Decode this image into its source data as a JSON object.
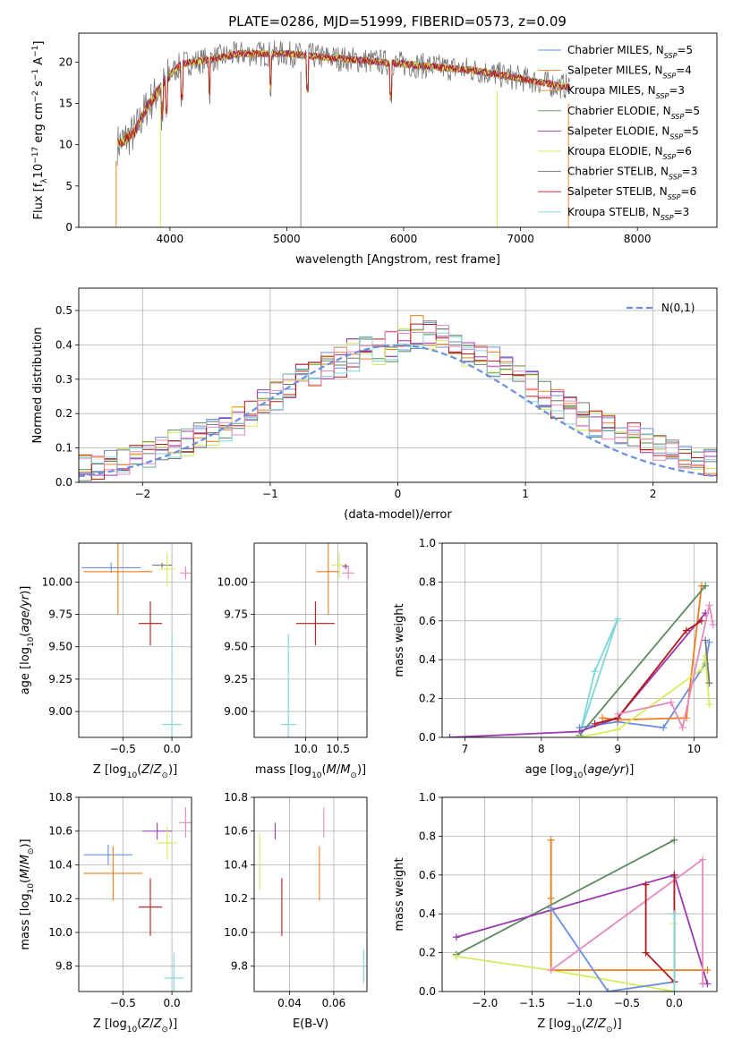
{
  "figure": {
    "title": "PLATE=0286, MJD=51999, FIBERID=0573, z=0.09"
  },
  "colors": {
    "chabrier_miles": "#6b8fde",
    "salpeter_miles": "#f07c1c",
    "kroupa_miles": "#d28a2a",
    "chabrier_elodie": "#5a8a5e",
    "salpeter_elodie": "#9b37b0",
    "kroupa_elodie": "#d6eb5b",
    "chabrier_stelib": "#777777",
    "salpeter_stelib": "#b31b1b",
    "kroupa_stelib": "#7fd6d6",
    "pink": "#e58ac0",
    "normal": "#6b8fde",
    "grid": "#b0b0b0"
  },
  "chart_data": [
    {
      "id": "spectrum",
      "type": "line",
      "title": "PLATE=0286, MJD=51999, FIBERID=0573, z=0.09",
      "xlabel": "wavelength [Angstrom, rest frame]",
      "ylabel": "Flux [f_λ 10^-17 erg cm^-2 s^-1 A^-1]",
      "xlim": [
        3220,
        8680
      ],
      "ylim": [
        0,
        23.5
      ],
      "xticks": [
        4000,
        5000,
        6000,
        7000,
        8000
      ],
      "yticks": [
        0,
        5,
        10,
        15,
        20
      ],
      "continuum": {
        "x": [
          3550,
          3700,
          3800,
          3900,
          4000,
          4100,
          4300,
          4600,
          5000,
          5400,
          5800,
          6200,
          6600,
          7000,
          7300,
          7420
        ],
        "y": [
          10.0,
          11.5,
          14.5,
          16.5,
          18.5,
          19.8,
          20.2,
          21.0,
          21.0,
          20.5,
          20.0,
          19.5,
          19.0,
          18.0,
          17.2,
          17.0
        ]
      },
      "legend_position": "right",
      "legend": [
        {
          "base": "Chabrier MILES, N",
          "sub": "SSP",
          "tail": "=5"
        },
        {
          "base": "Salpeter MILES, N",
          "sub": "SSP",
          "tail": "=4"
        },
        {
          "base": "Kroupa MILES, N",
          "sub": "SSP",
          "tail": "=3"
        },
        {
          "base": "Chabrier ELODIE, N",
          "sub": "SSP",
          "tail": "=5"
        },
        {
          "base": "Salpeter ELODIE, N",
          "sub": "SSP",
          "tail": "=5"
        },
        {
          "base": "Kroupa ELODIE, N",
          "sub": "SSP",
          "tail": "=6"
        },
        {
          "base": "Chabrier STELIB, N",
          "sub": "SSP",
          "tail": "=3"
        },
        {
          "base": "Salpeter STELIB, N",
          "sub": "SSP",
          "tail": "=6"
        },
        {
          "base": "Kroupa STELIB, N",
          "sub": "SSP",
          "tail": "=3"
        }
      ]
    },
    {
      "id": "residuals",
      "type": "histogram",
      "xlabel": "(data-model)/error",
      "ylabel": "Normed distribution",
      "xlim": [
        -2.5,
        2.5
      ],
      "ylim": [
        0,
        0.565
      ],
      "xticks": [
        -2,
        -1,
        0,
        1,
        2
      ],
      "yticks": [
        0.0,
        0.1,
        0.2,
        0.3,
        0.4,
        0.5
      ],
      "legend_label": "N(0,1)",
      "bin_width": 0.1,
      "envelope": [
        0.02,
        0.022,
        0.025,
        0.03,
        0.035,
        0.04,
        0.045,
        0.055,
        0.065,
        0.075,
        0.085,
        0.095,
        0.11,
        0.12,
        0.13,
        0.145,
        0.16,
        0.18,
        0.2,
        0.225,
        0.255,
        0.28,
        0.3,
        0.32,
        0.34,
        0.355,
        0.37,
        0.38,
        0.39,
        0.4,
        0.42,
        0.44,
        0.42,
        0.41,
        0.395,
        0.385,
        0.37,
        0.35,
        0.33,
        0.31,
        0.28,
        0.255,
        0.23,
        0.21,
        0.19,
        0.175,
        0.16,
        0.15,
        0.13,
        0.115,
        0.1,
        0.085,
        0.075,
        0.065,
        0.055,
        0.045,
        0.035,
        0.03,
        0.025,
        0.022
      ]
    },
    {
      "id": "z_age",
      "type": "scatter",
      "xlabel": "Z [log10(Z/Z_sun)]",
      "ylabel": "age [log10(age/yr)]",
      "xlim": [
        -0.95,
        0.2
      ],
      "ylim": [
        8.8,
        10.3
      ],
      "xticks": [
        -0.5,
        0.0
      ],
      "yticks": [
        9.0,
        9.25,
        9.5,
        9.75,
        10.0
      ],
      "points": [
        {
          "series": "chabrier_miles",
          "x": -0.62,
          "y": 10.11,
          "xe": 0.3,
          "ye": 0.04
        },
        {
          "series": "salpeter_miles",
          "x": -0.55,
          "y": 10.08,
          "xe": 0.35,
          "ye": 0.33
        },
        {
          "series": "chabrier_stelib",
          "x": -0.1,
          "y": 10.13,
          "xe": 0.1,
          "ye": 0.02
        },
        {
          "series": "kroupa_elodie",
          "x": -0.05,
          "y": 10.1,
          "xe": 0.08,
          "ye": 0.13
        },
        {
          "series": "pink",
          "x": 0.14,
          "y": 10.07,
          "xe": 0.06,
          "ye": 0.05
        },
        {
          "series": "salpeter_stelib",
          "x": -0.22,
          "y": 9.68,
          "xe": 0.12,
          "ye": 0.17
        },
        {
          "series": "kroupa_stelib",
          "x": 0.0,
          "y": 8.9,
          "xe": 0.1,
          "ye": 0.7
        }
      ]
    },
    {
      "id": "mass_age",
      "type": "scatter",
      "xlabel": "mass [log10(M/M_sun)]",
      "ylabel": "",
      "xlim": [
        9.2,
        10.95
      ],
      "ylim": [
        8.8,
        10.3
      ],
      "xticks": [
        10.0,
        10.5
      ],
      "yticks": [
        9.0,
        9.25,
        9.5,
        9.75,
        10.0
      ],
      "points": [
        {
          "series": "salpeter_miles",
          "x": 10.35,
          "y": 10.08,
          "xe": 0.18,
          "ye": 0.33
        },
        {
          "series": "kroupa_elodie",
          "x": 10.52,
          "y": 10.13,
          "xe": 0.12,
          "ye": 0.1
        },
        {
          "series": "salpeter_elodie",
          "x": 10.62,
          "y": 10.12,
          "xe": 0.05,
          "ye": 0.02
        },
        {
          "series": "pink",
          "x": 10.66,
          "y": 10.07,
          "xe": 0.1,
          "ye": 0.05
        },
        {
          "series": "salpeter_stelib",
          "x": 10.15,
          "y": 9.68,
          "xe": 0.3,
          "ye": 0.17
        },
        {
          "series": "kroupa_stelib",
          "x": 9.73,
          "y": 8.9,
          "xe": 0.12,
          "ye": 0.7
        }
      ]
    },
    {
      "id": "age_weight",
      "type": "line",
      "xlabel": "age [log10(age/yr)]",
      "ylabel": "mass weight",
      "xlim": [
        6.7,
        10.3
      ],
      "ylim": [
        0,
        1.0
      ],
      "xticks": [
        7,
        8,
        9,
        10
      ],
      "yticks": [
        0.0,
        0.2,
        0.4,
        0.6,
        0.8,
        1.0
      ],
      "series": [
        {
          "key": "kroupa_stelib",
          "x": [
            8.5,
            8.7,
            9.0,
            8.5
          ],
          "y": [
            0.01,
            0.34,
            0.61,
            0.01
          ]
        },
        {
          "key": "chabrier_miles",
          "x": [
            8.5,
            9.0,
            9.6,
            10.15,
            10.2
          ],
          "y": [
            0.05,
            0.08,
            0.05,
            0.38,
            0.49
          ]
        },
        {
          "key": "salpeter_miles",
          "x": [
            8.8,
            9.0,
            9.9,
            10.1
          ],
          "y": [
            0.1,
            0.09,
            0.1,
            0.78
          ]
        },
        {
          "key": "chabrier_elodie",
          "x": [
            8.5,
            10.15
          ],
          "y": [
            0.01,
            0.78
          ]
        },
        {
          "key": "salpeter_elodie",
          "x": [
            6.8,
            8.5,
            9.0,
            10.15
          ],
          "y": [
            0.0,
            0.03,
            0.1,
            0.64
          ]
        },
        {
          "key": "kroupa_elodie",
          "x": [
            8.5,
            9.0,
            10.1,
            10.15,
            10.2
          ],
          "y": [
            0.0,
            0.04,
            0.35,
            0.42,
            0.17
          ]
        },
        {
          "key": "salpeter_stelib",
          "x": [
            8.7,
            9.0,
            9.9,
            10.1
          ],
          "y": [
            0.07,
            0.1,
            0.55,
            0.6
          ]
        },
        {
          "key": "pink",
          "x": [
            9.0,
            9.7,
            9.85,
            10.2,
            10.25
          ],
          "y": [
            0.12,
            0.18,
            0.05,
            0.68,
            0.58
          ]
        },
        {
          "key": "chabrier_stelib",
          "x": [
            10.15,
            10.2
          ],
          "y": [
            0.5,
            0.28
          ]
        }
      ]
    },
    {
      "id": "z_mass",
      "type": "scatter",
      "xlabel": "Z [log10(Z/Z_sun)]",
      "ylabel": "mass [log10(M/M_sun)]",
      "xlim": [
        -0.95,
        0.2
      ],
      "ylim": [
        9.65,
        10.8
      ],
      "xticks": [
        -0.5,
        0.0
      ],
      "yticks": [
        9.8,
        10.0,
        10.2,
        10.4,
        10.6,
        10.8
      ],
      "points": [
        {
          "series": "chabrier_miles",
          "x": -0.65,
          "y": 10.46,
          "xe": 0.25,
          "ye": 0.06
        },
        {
          "series": "salpeter_miles",
          "x": -0.6,
          "y": 10.35,
          "xe": 0.3,
          "ye": 0.16
        },
        {
          "series": "salpeter_elodie",
          "x": -0.15,
          "y": 10.6,
          "xe": 0.15,
          "ye": 0.05
        },
        {
          "series": "kroupa_elodie",
          "x": -0.05,
          "y": 10.53,
          "xe": 0.1,
          "ye": 0.1
        },
        {
          "series": "pink",
          "x": 0.14,
          "y": 10.65,
          "xe": 0.07,
          "ye": 0.09
        },
        {
          "series": "salpeter_stelib",
          "x": -0.22,
          "y": 10.15,
          "xe": 0.12,
          "ye": 0.17
        },
        {
          "series": "kroupa_stelib",
          "x": 0.02,
          "y": 9.73,
          "xe": 0.1,
          "ye": 0.15
        }
      ]
    },
    {
      "id": "ebv_mass",
      "type": "scatter",
      "xlabel": "E(B-V)",
      "ylabel": "",
      "xlim": [
        0.024,
        0.075
      ],
      "ylim": [
        9.65,
        10.8
      ],
      "xticks": [
        0.04,
        0.06
      ],
      "yticks": [
        9.8,
        10.0,
        10.2,
        10.4,
        10.6,
        10.8
      ],
      "points": [
        {
          "series": "kroupa_elodie",
          "x": 0.0265,
          "y": 10.42,
          "ye": 0.17
        },
        {
          "series": "salpeter_elodie",
          "x": 0.0335,
          "y": 10.6,
          "ye": 0.05
        },
        {
          "series": "salpeter_stelib",
          "x": 0.0365,
          "y": 10.15,
          "ye": 0.17
        },
        {
          "series": "salpeter_miles",
          "x": 0.0535,
          "y": 10.35,
          "ye": 0.16
        },
        {
          "series": "pink",
          "x": 0.0555,
          "y": 10.65,
          "ye": 0.09
        },
        {
          "series": "kroupa_stelib",
          "x": 0.0735,
          "y": 9.8,
          "ye": 0.1
        }
      ]
    },
    {
      "id": "z_weight",
      "type": "line",
      "xlabel": "Z [log10(Z/Z_sun)]",
      "ylabel": "mass weight",
      "xlim": [
        -2.45,
        0.45
      ],
      "ylim": [
        0,
        1.0
      ],
      "xticks": [
        -2.0,
        -1.5,
        -1.0,
        -0.5,
        0.0
      ],
      "yticks": [
        0.0,
        0.2,
        0.4,
        0.6,
        0.8,
        1.0
      ],
      "series": [
        {
          "key": "chabrier_elodie",
          "x": [
            -2.3,
            0.0
          ],
          "y": [
            0.19,
            0.78
          ]
        },
        {
          "key": "salpeter_elodie",
          "x": [
            -2.3,
            0.0,
            0.35,
            0.3
          ],
          "y": [
            0.28,
            0.6,
            0.04,
            0.04
          ]
        },
        {
          "key": "kroupa_elodie",
          "x": [
            -2.3,
            -1.3,
            0.0,
            0.0
          ],
          "y": [
            0.18,
            0.11,
            0.0,
            0.35
          ]
        },
        {
          "key": "salpeter_miles",
          "x": [
            -1.3,
            -1.3,
            -1.3,
            0.0,
            0.35
          ],
          "y": [
            0.78,
            0.48,
            0.11,
            0.11,
            0.11
          ]
        },
        {
          "key": "chabrier_miles",
          "x": [
            -1.3,
            -0.7,
            0.0,
            0.0
          ],
          "y": [
            0.43,
            0.0,
            0.05,
            0.59
          ]
        },
        {
          "key": "pink",
          "x": [
            -1.3,
            0.3,
            0.3
          ],
          "y": [
            0.11,
            0.68,
            0.04
          ]
        },
        {
          "key": "salpeter_stelib",
          "x": [
            -0.3,
            -0.3,
            0.0,
            0.0
          ],
          "y": [
            0.55,
            0.2,
            0.05,
            0.6
          ]
        },
        {
          "key": "kroupa_stelib",
          "x": [
            0.0,
            0.0
          ],
          "y": [
            0.0,
            0.4
          ]
        }
      ]
    }
  ]
}
